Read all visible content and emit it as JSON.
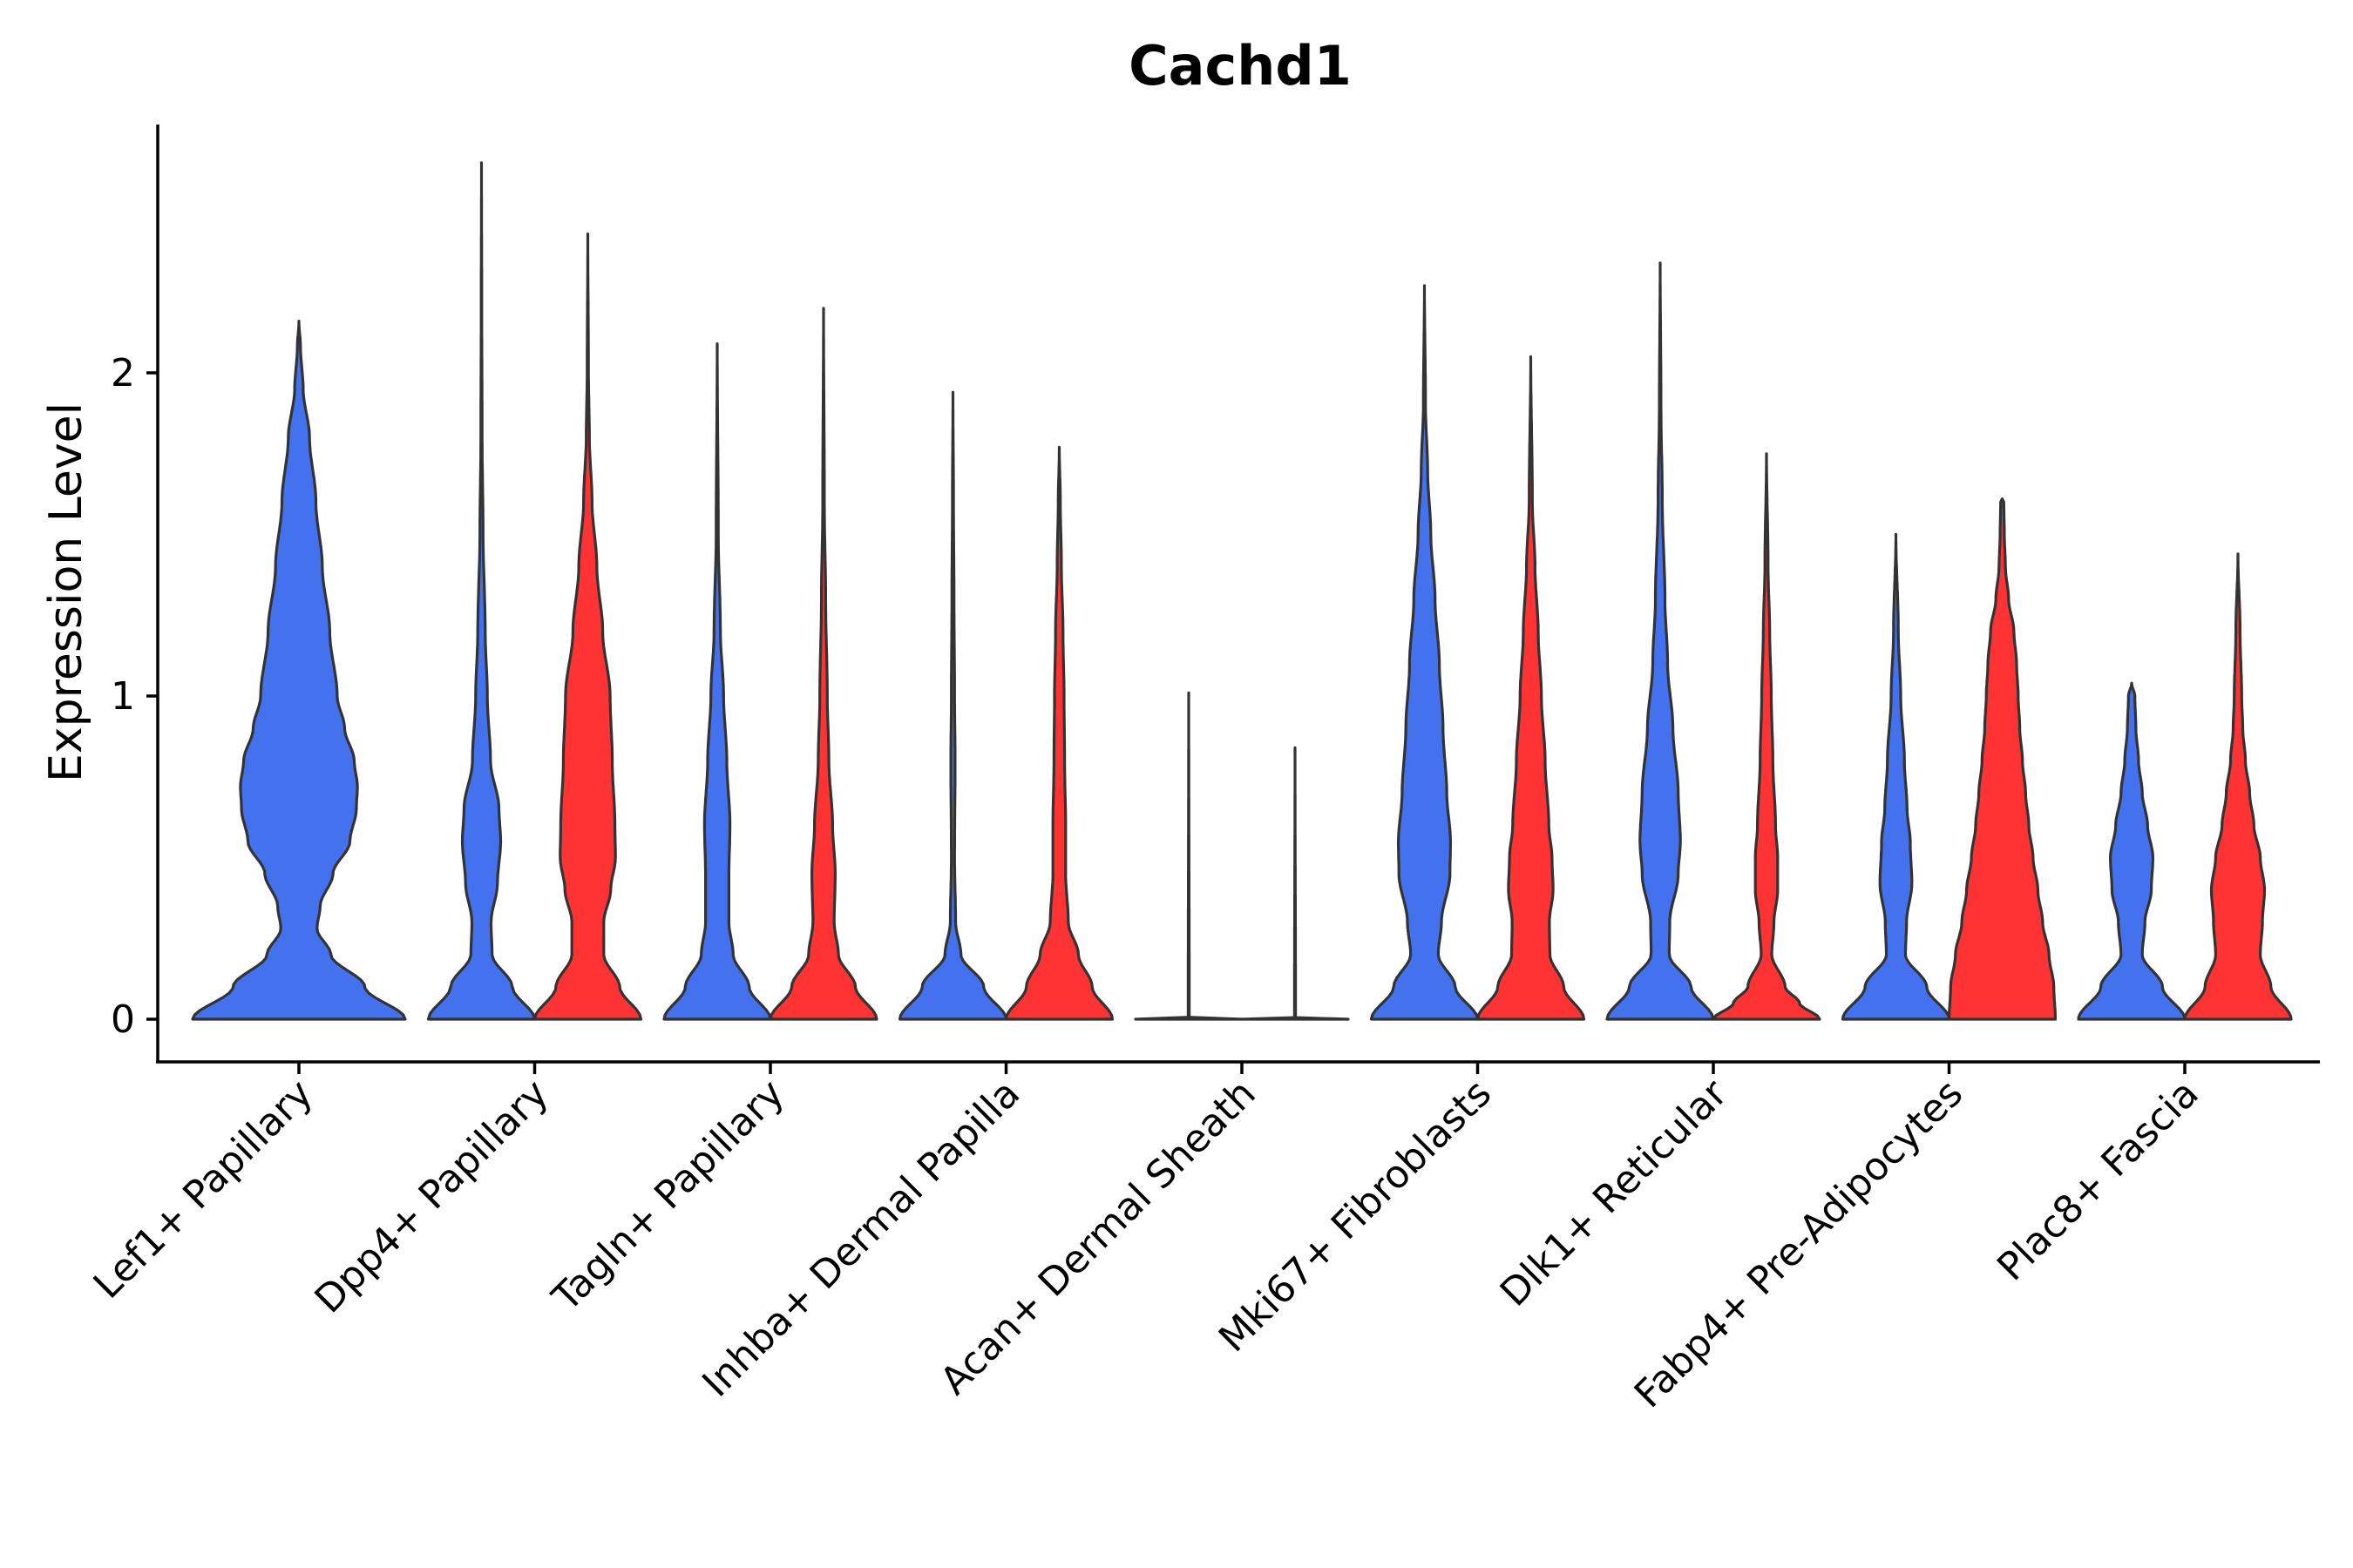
{
  "chart_data": {
    "type": "violin",
    "title": "Cachd1",
    "xlabel": "",
    "ylabel": "Expression Level",
    "ylim": [
      -0.13,
      2.78
    ],
    "yticks": [
      0,
      1,
      2
    ],
    "grid": false,
    "legend": "none",
    "colors": {
      "blue": "#4472EF",
      "red": "#FF3333",
      "outline": "#333333"
    },
    "categories": [
      "Lef1+ Papillary",
      "Dpp4+ Papillary",
      "Tagln+ Papillary",
      "Inhba+ Dermal Papilla",
      "Acan+ Dermal Sheath",
      "Mki67+ Fibroblasts",
      "Dlk1+ Reticular",
      "Fabp4+ Pre-Adipocytes",
      "Plac8+ Fascia"
    ],
    "violins": [
      {
        "category": 0,
        "side": "center",
        "color": "blue",
        "max": 2.16,
        "profile": [
          [
            0,
            1.0
          ],
          [
            0.1,
            0.62
          ],
          [
            0.2,
            0.3
          ],
          [
            0.28,
            0.17
          ],
          [
            0.35,
            0.2
          ],
          [
            0.45,
            0.32
          ],
          [
            0.55,
            0.48
          ],
          [
            0.65,
            0.54
          ],
          [
            0.72,
            0.55
          ],
          [
            0.8,
            0.52
          ],
          [
            0.9,
            0.43
          ],
          [
            1.0,
            0.36
          ],
          [
            1.2,
            0.29
          ],
          [
            1.4,
            0.22
          ],
          [
            1.6,
            0.16
          ],
          [
            1.8,
            0.1
          ],
          [
            1.95,
            0.04
          ],
          [
            2.08,
            0.015
          ],
          [
            2.16,
            0.0
          ]
        ]
      },
      {
        "category": 1,
        "side": "left",
        "color": "blue",
        "max": 2.65,
        "profile": [
          [
            0,
            1.0
          ],
          [
            0.1,
            0.58
          ],
          [
            0.2,
            0.2
          ],
          [
            0.3,
            0.18
          ],
          [
            0.42,
            0.3
          ],
          [
            0.55,
            0.36
          ],
          [
            0.65,
            0.33
          ],
          [
            0.8,
            0.17
          ],
          [
            1.0,
            0.11
          ],
          [
            1.2,
            0.07
          ],
          [
            1.5,
            0.03
          ],
          [
            1.8,
            0.012
          ],
          [
            2.2,
            0.005
          ],
          [
            2.65,
            0.0
          ]
        ]
      },
      {
        "category": 1,
        "side": "right",
        "color": "red",
        "max": 2.43,
        "profile": [
          [
            0,
            1.0
          ],
          [
            0.1,
            0.6
          ],
          [
            0.2,
            0.3
          ],
          [
            0.3,
            0.3
          ],
          [
            0.4,
            0.43
          ],
          [
            0.5,
            0.52
          ],
          [
            0.6,
            0.51
          ],
          [
            0.8,
            0.46
          ],
          [
            1.0,
            0.42
          ],
          [
            1.2,
            0.28
          ],
          [
            1.4,
            0.17
          ],
          [
            1.6,
            0.08
          ],
          [
            1.8,
            0.03
          ],
          [
            2.0,
            0.012
          ],
          [
            2.43,
            0.0
          ]
        ]
      },
      {
        "category": 2,
        "side": "left",
        "color": "blue",
        "max": 2.09,
        "profile": [
          [
            0,
            1.0
          ],
          [
            0.1,
            0.6
          ],
          [
            0.2,
            0.3
          ],
          [
            0.3,
            0.22
          ],
          [
            0.45,
            0.22
          ],
          [
            0.6,
            0.24
          ],
          [
            0.8,
            0.18
          ],
          [
            1.0,
            0.12
          ],
          [
            1.2,
            0.06
          ],
          [
            1.5,
            0.02
          ],
          [
            2.09,
            0.0
          ]
        ]
      },
      {
        "category": 2,
        "side": "right",
        "color": "red",
        "max": 2.2,
        "profile": [
          [
            0,
            1.0
          ],
          [
            0.1,
            0.6
          ],
          [
            0.2,
            0.28
          ],
          [
            0.3,
            0.2
          ],
          [
            0.45,
            0.22
          ],
          [
            0.6,
            0.17
          ],
          [
            0.8,
            0.1
          ],
          [
            1.0,
            0.07
          ],
          [
            1.3,
            0.04
          ],
          [
            1.6,
            0.015
          ],
          [
            2.2,
            0.0
          ]
        ]
      },
      {
        "category": 3,
        "side": "left",
        "color": "blue",
        "max": 1.94,
        "profile": [
          [
            0,
            1.0
          ],
          [
            0.1,
            0.58
          ],
          [
            0.2,
            0.15
          ],
          [
            0.3,
            0.05
          ],
          [
            0.5,
            0.03
          ],
          [
            0.8,
            0.04
          ],
          [
            1.0,
            0.03
          ],
          [
            1.3,
            0.02
          ],
          [
            1.6,
            0.01
          ],
          [
            1.94,
            0.0
          ]
        ]
      },
      {
        "category": 3,
        "side": "right",
        "color": "red",
        "max": 1.77,
        "profile": [
          [
            0,
            1.0
          ],
          [
            0.1,
            0.62
          ],
          [
            0.2,
            0.36
          ],
          [
            0.3,
            0.17
          ],
          [
            0.45,
            0.12
          ],
          [
            0.6,
            0.12
          ],
          [
            0.8,
            0.1
          ],
          [
            1.0,
            0.09
          ],
          [
            1.2,
            0.07
          ],
          [
            1.4,
            0.04
          ],
          [
            1.6,
            0.02
          ],
          [
            1.77,
            0.0
          ]
        ]
      },
      {
        "category": 4,
        "side": "left",
        "color": "blue",
        "max": 1.01,
        "profile": [
          [
            0,
            1.0
          ],
          [
            0.004,
            0.0
          ],
          [
            0.01,
            0.01
          ],
          [
            1.01,
            0.0
          ]
        ]
      },
      {
        "category": 4,
        "side": "right",
        "color": "blue",
        "max": 0.84,
        "profile": [
          [
            0,
            1.0
          ],
          [
            0.004,
            0.0
          ],
          [
            0.01,
            0.01
          ],
          [
            0.84,
            0.0
          ]
        ]
      },
      {
        "category": 5,
        "side": "left",
        "color": "blue",
        "max": 2.27,
        "profile": [
          [
            0,
            1.0
          ],
          [
            0.1,
            0.58
          ],
          [
            0.2,
            0.26
          ],
          [
            0.3,
            0.32
          ],
          [
            0.45,
            0.48
          ],
          [
            0.55,
            0.49
          ],
          [
            0.7,
            0.42
          ],
          [
            0.9,
            0.35
          ],
          [
            1.1,
            0.28
          ],
          [
            1.3,
            0.2
          ],
          [
            1.5,
            0.12
          ],
          [
            1.7,
            0.06
          ],
          [
            1.9,
            0.02
          ],
          [
            2.27,
            0.0
          ]
        ]
      },
      {
        "category": 5,
        "side": "right",
        "color": "red",
        "max": 2.05,
        "profile": [
          [
            0,
            1.0
          ],
          [
            0.1,
            0.62
          ],
          [
            0.2,
            0.36
          ],
          [
            0.3,
            0.35
          ],
          [
            0.4,
            0.42
          ],
          [
            0.5,
            0.4
          ],
          [
            0.6,
            0.34
          ],
          [
            0.8,
            0.27
          ],
          [
            1.0,
            0.2
          ],
          [
            1.2,
            0.14
          ],
          [
            1.4,
            0.08
          ],
          [
            1.6,
            0.03
          ],
          [
            2.05,
            0.0
          ]
        ]
      },
      {
        "category": 6,
        "side": "left",
        "color": "blue",
        "max": 2.34,
        "profile": [
          [
            0,
            1.0
          ],
          [
            0.1,
            0.58
          ],
          [
            0.2,
            0.17
          ],
          [
            0.3,
            0.18
          ],
          [
            0.45,
            0.34
          ],
          [
            0.55,
            0.38
          ],
          [
            0.7,
            0.34
          ],
          [
            0.9,
            0.24
          ],
          [
            1.1,
            0.14
          ],
          [
            1.3,
            0.09
          ],
          [
            1.6,
            0.04
          ],
          [
            1.9,
            0.015
          ],
          [
            2.34,
            0.0
          ]
        ]
      },
      {
        "category": 6,
        "side": "right",
        "color": "red",
        "max": 1.75,
        "profile": [
          [
            0,
            1.0
          ],
          [
            0.05,
            0.62
          ],
          [
            0.1,
            0.35
          ],
          [
            0.2,
            0.1
          ],
          [
            0.3,
            0.14
          ],
          [
            0.4,
            0.21
          ],
          [
            0.5,
            0.21
          ],
          [
            0.6,
            0.17
          ],
          [
            0.8,
            0.12
          ],
          [
            1.0,
            0.09
          ],
          [
            1.2,
            0.06
          ],
          [
            1.4,
            0.03
          ],
          [
            1.75,
            0.0
          ]
        ]
      },
      {
        "category": 7,
        "side": "left",
        "color": "blue",
        "max": 1.5,
        "profile": [
          [
            0,
            1.0
          ],
          [
            0.1,
            0.58
          ],
          [
            0.2,
            0.18
          ],
          [
            0.3,
            0.2
          ],
          [
            0.42,
            0.3
          ],
          [
            0.55,
            0.27
          ],
          [
            0.65,
            0.21
          ],
          [
            0.8,
            0.16
          ],
          [
            1.0,
            0.09
          ],
          [
            1.2,
            0.045
          ],
          [
            1.5,
            0.0
          ]
        ]
      },
      {
        "category": 7,
        "side": "right",
        "color": "red",
        "max": 1.61,
        "profile": [
          [
            0,
            1.0
          ],
          [
            0.1,
            0.97
          ],
          [
            0.2,
            0.88
          ],
          [
            0.3,
            0.76
          ],
          [
            0.4,
            0.67
          ],
          [
            0.5,
            0.58
          ],
          [
            0.6,
            0.5
          ],
          [
            0.7,
            0.44
          ],
          [
            0.8,
            0.38
          ],
          [
            0.9,
            0.33
          ],
          [
            1.0,
            0.3
          ],
          [
            1.1,
            0.27
          ],
          [
            1.2,
            0.22
          ],
          [
            1.3,
            0.12
          ],
          [
            1.4,
            0.06
          ],
          [
            1.5,
            0.04
          ],
          [
            1.6,
            0.03
          ],
          [
            1.61,
            0.0
          ]
        ]
      },
      {
        "category": 8,
        "side": "left",
        "color": "blue",
        "max": 1.04,
        "profile": [
          [
            0,
            1.0
          ],
          [
            0.1,
            0.58
          ],
          [
            0.2,
            0.2
          ],
          [
            0.3,
            0.25
          ],
          [
            0.4,
            0.37
          ],
          [
            0.5,
            0.4
          ],
          [
            0.6,
            0.3
          ],
          [
            0.7,
            0.2
          ],
          [
            0.8,
            0.13
          ],
          [
            0.9,
            0.08
          ],
          [
            1.0,
            0.06
          ],
          [
            1.04,
            0.0
          ]
        ]
      },
      {
        "category": 8,
        "side": "right",
        "color": "red",
        "max": 1.44,
        "profile": [
          [
            0,
            1.0
          ],
          [
            0.1,
            0.62
          ],
          [
            0.2,
            0.42
          ],
          [
            0.3,
            0.46
          ],
          [
            0.4,
            0.5
          ],
          [
            0.5,
            0.42
          ],
          [
            0.6,
            0.3
          ],
          [
            0.7,
            0.22
          ],
          [
            0.8,
            0.14
          ],
          [
            0.9,
            0.09
          ],
          [
            1.0,
            0.07
          ],
          [
            1.2,
            0.04
          ],
          [
            1.44,
            0.0
          ]
        ]
      }
    ]
  }
}
